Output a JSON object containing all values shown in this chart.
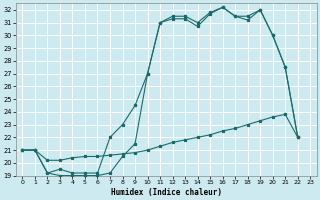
{
  "xlabel": "Humidex (Indice chaleur)",
  "bg_color": "#cdeaf0",
  "grid_color": "#ffffff",
  "line_color": "#1a6b6b",
  "xlim": [
    -0.5,
    23.5
  ],
  "ylim": [
    19,
    32.5
  ],
  "yticks": [
    19,
    20,
    21,
    22,
    23,
    24,
    25,
    26,
    27,
    28,
    29,
    30,
    31,
    32
  ],
  "xticks": [
    0,
    1,
    2,
    3,
    4,
    5,
    6,
    7,
    8,
    9,
    10,
    11,
    12,
    13,
    14,
    15,
    16,
    17,
    18,
    19,
    20,
    21,
    22,
    23
  ],
  "line1_x": [
    0,
    1,
    2,
    3,
    4,
    5,
    6,
    7,
    8,
    9,
    10,
    11,
    12,
    13,
    14,
    15,
    16,
    17,
    18,
    19,
    20,
    21,
    22
  ],
  "line1_y": [
    21.0,
    21.0,
    19.2,
    19.0,
    19.0,
    19.0,
    19.0,
    19.2,
    20.5,
    21.5,
    27.0,
    31.0,
    31.5,
    31.5,
    31.0,
    31.8,
    32.2,
    31.5,
    31.5,
    32.0,
    30.0,
    27.5,
    22.0
  ],
  "line2_x": [
    0,
    1,
    2,
    3,
    4,
    5,
    6,
    7,
    8,
    9,
    10,
    11,
    12,
    13,
    14,
    15,
    16,
    17,
    18,
    19,
    20,
    21,
    22
  ],
  "line2_y": [
    21.0,
    21.0,
    19.2,
    19.5,
    19.2,
    19.2,
    19.2,
    22.0,
    23.0,
    24.5,
    27.0,
    31.0,
    31.3,
    31.3,
    30.7,
    31.7,
    32.2,
    31.5,
    31.2,
    32.0,
    30.0,
    27.5,
    22.0
  ],
  "line3_x": [
    0,
    1,
    2,
    3,
    4,
    5,
    6,
    7,
    8,
    9,
    10,
    11,
    12,
    13,
    14,
    15,
    16,
    17,
    18,
    19,
    20,
    21,
    22
  ],
  "line3_y": [
    21.0,
    21.0,
    20.2,
    20.2,
    20.4,
    20.5,
    20.5,
    20.6,
    20.7,
    20.8,
    21.0,
    21.3,
    21.6,
    21.8,
    22.0,
    22.2,
    22.5,
    22.7,
    23.0,
    23.3,
    23.6,
    23.8,
    22.0
  ]
}
